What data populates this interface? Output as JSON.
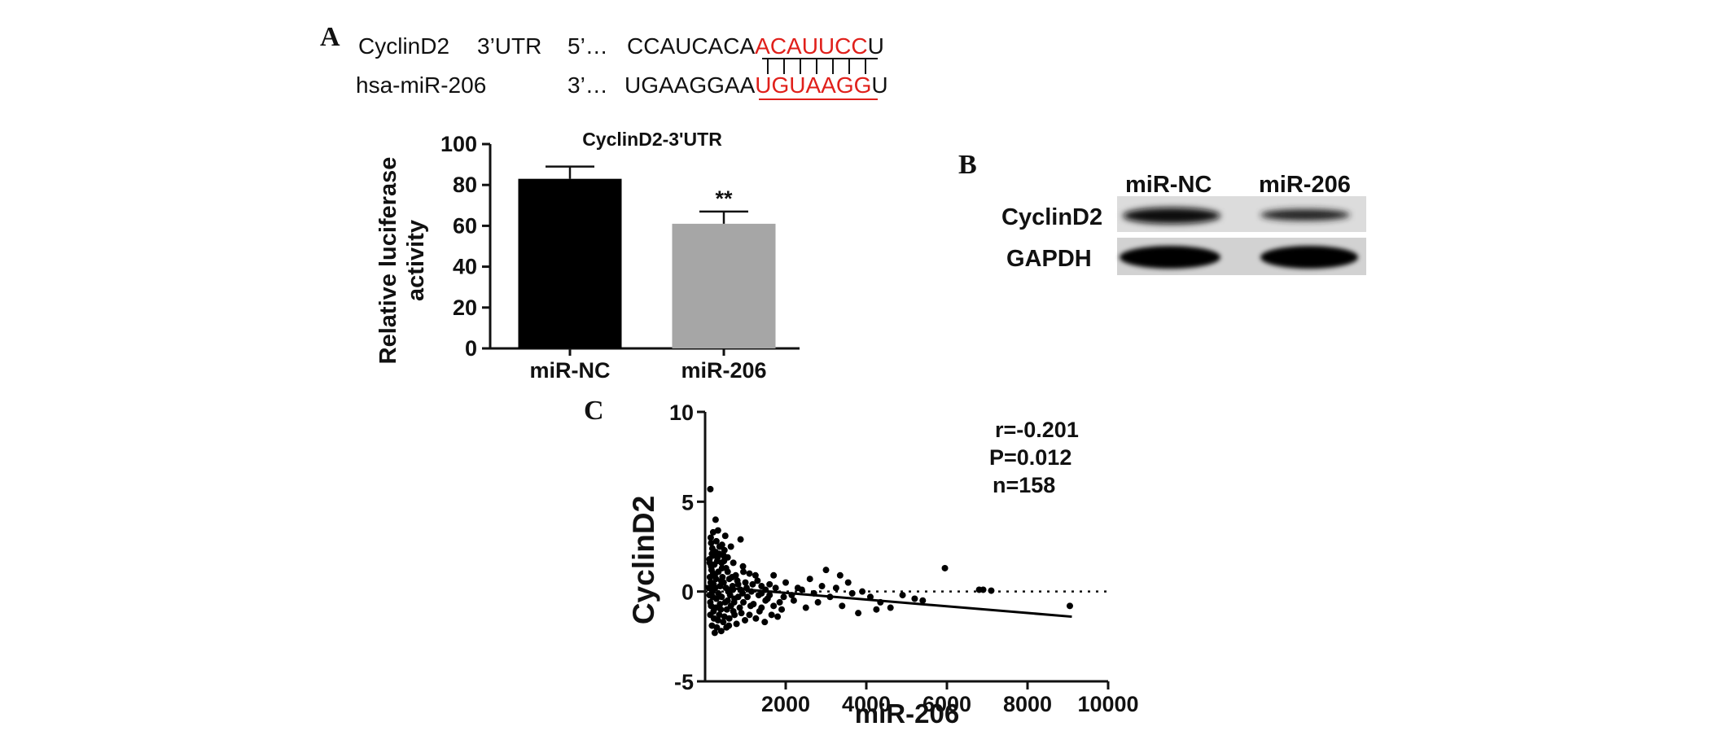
{
  "panels": {
    "a": {
      "letter": "A",
      "sequence": {
        "row1": {
          "name": "CyclinD2",
          "region": "3’UTR",
          "prime": "5’…",
          "seq_black": "CCAUCACA",
          "seq_red": "ACAUUCC",
          "seq_end": "U"
        },
        "row2": {
          "name": "hsa-miR-206",
          "prime": "3’…",
          "seq_black": "UGAAGGAA",
          "seq_red": "UGUAAGG",
          "seq_end": "U"
        }
      },
      "chart_data": {
        "type": "bar",
        "title": "CyclinD2-3'UTR",
        "categories": [
          "miR-NC",
          "miR-206"
        ],
        "values": [
          83,
          61
        ],
        "error": [
          6,
          6
        ],
        "colors": [
          "#000000",
          "#a6a6a6"
        ],
        "annotation": "**",
        "ylabel": [
          "Relative luciferase",
          "activity"
        ],
        "ylim": [
          0,
          100
        ],
        "yticks": [
          0,
          20,
          40,
          60,
          80,
          100
        ]
      }
    },
    "b": {
      "letter": "B",
      "lanes": [
        "miR-NC",
        "miR-206"
      ],
      "rows": [
        "CyclinD2",
        "GAPDH"
      ]
    },
    "c": {
      "letter": "C",
      "stats": {
        "r": "r=-0.201",
        "p": "P=0.012",
        "n": "n=158"
      },
      "chart_data": {
        "type": "scatter",
        "xlabel": "miR-206",
        "ylabel": "CyclinD2",
        "xlim": [
          0,
          10000
        ],
        "ylim": [
          -5,
          10
        ],
        "xticks": [
          2000,
          4000,
          6000,
          8000,
          10000
        ],
        "yticks": [
          -5,
          0,
          5,
          10
        ],
        "regression": {
          "x": [
            0,
            9100
          ],
          "y": [
            0.3,
            -1.4
          ]
        },
        "reference_line": {
          "y": 0,
          "style": "dotted"
        },
        "points": [
          [
            130,
            5.7
          ],
          [
            260,
            4.0
          ],
          [
            200,
            3.3
          ],
          [
            320,
            3.4
          ],
          [
            500,
            3.1
          ],
          [
            420,
            2.6
          ],
          [
            640,
            2.5
          ],
          [
            880,
            2.9
          ],
          [
            150,
            2.7
          ],
          [
            180,
            2.4
          ],
          [
            260,
            2.2
          ],
          [
            350,
            2.1
          ],
          [
            460,
            2.0
          ],
          [
            560,
            1.9
          ],
          [
            200,
            2.0
          ],
          [
            110,
            1.8
          ],
          [
            300,
            1.7
          ],
          [
            410,
            1.6
          ],
          [
            230,
            1.5
          ],
          [
            150,
            1.4
          ],
          [
            520,
            1.3
          ],
          [
            700,
            1.6
          ],
          [
            940,
            1.4
          ],
          [
            1100,
            1.0
          ],
          [
            1250,
            0.9
          ],
          [
            330,
            1.1
          ],
          [
            240,
            0.9
          ],
          [
            160,
            1.2
          ],
          [
            430,
            0.8
          ],
          [
            600,
            0.7
          ],
          [
            800,
            0.6
          ],
          [
            1000,
            0.5
          ],
          [
            1400,
            0.3
          ],
          [
            1600,
            0.4
          ],
          [
            140,
            0.5
          ],
          [
            210,
            0.4
          ],
          [
            370,
            0.3
          ],
          [
            520,
            0.2
          ],
          [
            680,
            0.3
          ],
          [
            880,
            0.1
          ],
          [
            1150,
            0.0
          ],
          [
            1400,
            -0.1
          ],
          [
            1750,
            0.2
          ],
          [
            110,
            -0.2
          ],
          [
            190,
            -0.3
          ],
          [
            280,
            -0.4
          ],
          [
            410,
            -0.3
          ],
          [
            560,
            -0.5
          ],
          [
            730,
            -0.4
          ],
          [
            950,
            -0.6
          ],
          [
            1200,
            -0.7
          ],
          [
            1500,
            -0.5
          ],
          [
            1850,
            -0.6
          ],
          [
            150,
            -0.8
          ],
          [
            260,
            -0.9
          ],
          [
            390,
            -1.0
          ],
          [
            540,
            -1.0
          ],
          [
            700,
            -1.1
          ],
          [
            900,
            -1.2
          ],
          [
            1100,
            -1.3
          ],
          [
            1350,
            -1.1
          ],
          [
            1650,
            -1.3
          ],
          [
            1900,
            -1.0
          ],
          [
            130,
            -1.3
          ],
          [
            220,
            -1.5
          ],
          [
            320,
            -1.6
          ],
          [
            450,
            -1.7
          ],
          [
            600,
            -1.5
          ],
          [
            780,
            -1.8
          ],
          [
            170,
            -1.9
          ],
          [
            290,
            -2.0
          ],
          [
            400,
            -2.2
          ],
          [
            530,
            -2.0
          ],
          [
            240,
            -2.3
          ],
          [
            120,
            0.8
          ],
          [
            100,
            0.2
          ],
          [
            180,
            0.0
          ],
          [
            330,
            -0.1
          ],
          [
            460,
            0.5
          ],
          [
            620,
            -0.2
          ],
          [
            760,
            0.9
          ],
          [
            1050,
            -0.3
          ],
          [
            1300,
            0.6
          ],
          [
            1550,
            -0.4
          ],
          [
            2000,
            0.5
          ],
          [
            2200,
            -0.5
          ],
          [
            2500,
            -0.9
          ],
          [
            2700,
            -0.1
          ],
          [
            2900,
            0.3
          ],
          [
            3000,
            1.2
          ],
          [
            3250,
            0.2
          ],
          [
            3400,
            -0.8
          ],
          [
            3550,
            0.5
          ],
          [
            3800,
            -1.2
          ],
          [
            4100,
            -0.3
          ],
          [
            4350,
            -0.6
          ],
          [
            4600,
            -0.9
          ],
          [
            4900,
            -0.2
          ],
          [
            5200,
            -0.4
          ],
          [
            5950,
            1.3
          ],
          [
            6800,
            0.1
          ],
          [
            7100,
            0.05
          ],
          [
            9050,
            -0.8
          ],
          [
            2150,
            -0.2
          ],
          [
            1700,
            0.9
          ],
          [
            1800,
            -1.4
          ],
          [
            950,
            1.1
          ],
          [
            1400,
            -0.9
          ],
          [
            2400,
            0.1
          ],
          [
            3100,
            -0.3
          ],
          [
            2600,
            0.7
          ],
          [
            3350,
            0.9
          ],
          [
            3900,
            0.0
          ],
          [
            140,
            3.0
          ],
          [
            280,
            2.8
          ],
          [
            360,
            2.5
          ],
          [
            480,
            2.3
          ],
          [
            170,
            2.1
          ],
          [
            310,
            1.9
          ],
          [
            420,
            1.3
          ],
          [
            560,
            1.1
          ],
          [
            670,
            0.8
          ],
          [
            820,
            0.4
          ],
          [
            200,
            1.0
          ],
          [
            270,
            0.7
          ],
          [
            400,
            0.6
          ],
          [
            500,
            -0.6
          ],
          [
            640,
            -0.8
          ],
          [
            730,
            -1.3
          ],
          [
            860,
            -0.9
          ],
          [
            990,
            -1.6
          ],
          [
            1130,
            -0.8
          ],
          [
            1260,
            -1.5
          ],
          [
            1480,
            -1.7
          ],
          [
            1600,
            -0.2
          ],
          [
            130,
            -0.6
          ],
          [
            210,
            -1.1
          ],
          [
            350,
            -1.3
          ],
          [
            480,
            -1.4
          ],
          [
            590,
            -1.9
          ],
          [
            690,
            0.1
          ],
          [
            820,
            -0.3
          ],
          [
            930,
            -0.1
          ],
          [
            1030,
            0.2
          ],
          [
            1180,
            0.4
          ],
          [
            1330,
            -0.2
          ],
          [
            1500,
            0.1
          ],
          [
            1700,
            -0.8
          ],
          [
            1950,
            -0.3
          ],
          [
            2300,
            0.2
          ],
          [
            2800,
            -0.6
          ],
          [
            3650,
            -0.1
          ],
          [
            4250,
            -1.0
          ],
          [
            5400,
            -0.5
          ],
          [
            6900,
            0.1
          ],
          [
            115,
            1.6
          ],
          [
            250,
            0.2
          ],
          [
            370,
            -0.7
          ],
          [
            470,
            1.7
          ],
          [
            575,
            0.0
          ],
          [
            720,
            -0.6
          ]
        ]
      }
    }
  }
}
